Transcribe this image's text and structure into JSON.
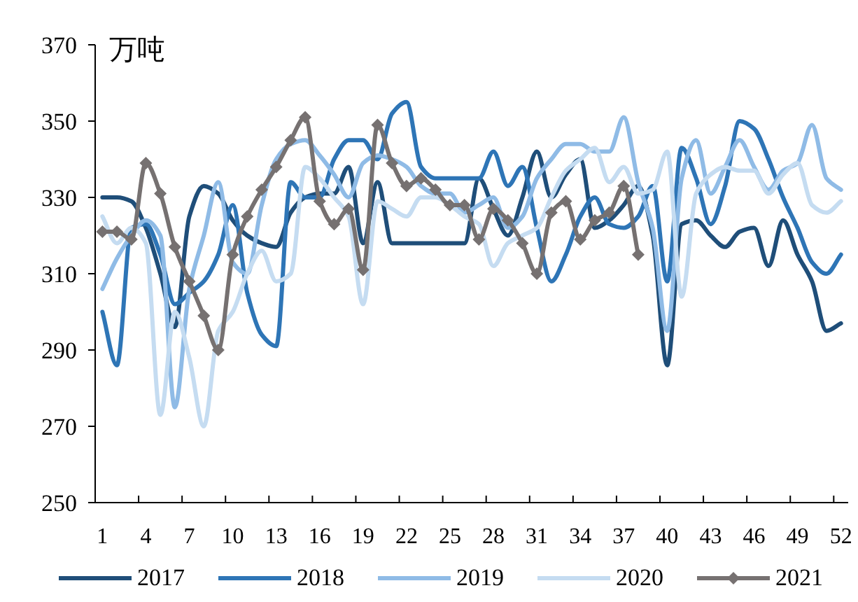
{
  "chart_data": {
    "type": "line",
    "ylabel": "万吨",
    "categories": [
      "1",
      null,
      null,
      "4",
      null,
      null,
      "7",
      null,
      null,
      "10",
      null,
      null,
      "13",
      null,
      null,
      "16",
      null,
      null,
      "19",
      null,
      null,
      "22",
      null,
      null,
      "25",
      null,
      null,
      "28",
      null,
      null,
      "31",
      null,
      null,
      "34",
      null,
      null,
      "37",
      null,
      null,
      "40",
      null,
      null,
      "43",
      null,
      null,
      "46",
      null,
      null,
      "49",
      null,
      null,
      "52"
    ],
    "ylim": [
      250,
      370
    ],
    "yticks": [
      250,
      270,
      290,
      310,
      330,
      350,
      370
    ],
    "legend": "bottom",
    "series": [
      {
        "name": "2017",
        "color": "#1f4e79",
        "marker": "none",
        "values": [
          330,
          330,
          329,
          322,
          310,
          296,
          325,
          333,
          331,
          324,
          320,
          318,
          317,
          326,
          330,
          331,
          331,
          338,
          318,
          334,
          318,
          318,
          318,
          318,
          318,
          318,
          335,
          327,
          320,
          330,
          342,
          330,
          336,
          340,
          322,
          324,
          328,
          333,
          320,
          286,
          323,
          324,
          320,
          317,
          321,
          322,
          312,
          324,
          315,
          308,
          295,
          297
        ]
      },
      {
        "name": "2018",
        "color": "#2e75b6",
        "marker": "none",
        "values": [
          300,
          286,
          322,
          323,
          315,
          302,
          305,
          308,
          315,
          328,
          305,
          294,
          291,
          334,
          330,
          330,
          340,
          345,
          345,
          340,
          352,
          355,
          338,
          335,
          335,
          335,
          335,
          342,
          333,
          338,
          322,
          308,
          315,
          325,
          330,
          323,
          322,
          325,
          333,
          308,
          343,
          335,
          323,
          333,
          350,
          348,
          340,
          330,
          322,
          313,
          310,
          315
        ]
      },
      {
        "name": "2019",
        "color": "#8fbbe6",
        "marker": "none",
        "values": [
          306,
          314,
          320,
          324,
          320,
          275,
          306,
          320,
          334,
          313,
          310,
          328,
          340,
          344,
          345,
          341,
          336,
          330,
          339,
          341,
          340,
          338,
          333,
          331,
          331,
          326,
          328,
          330,
          322,
          325,
          335,
          340,
          344,
          344,
          342,
          342,
          351,
          334,
          322,
          295,
          335,
          345,
          331,
          338,
          345,
          338,
          332,
          337,
          339,
          349,
          335,
          332
        ]
      },
      {
        "name": "2020",
        "color": "#c5dcf1",
        "marker": "none",
        "values": [
          325,
          318,
          322,
          318,
          273,
          300,
          288,
          270,
          295,
          300,
          310,
          316,
          308,
          310,
          338,
          335,
          330,
          325,
          302,
          329,
          327,
          325,
          330,
          330,
          328,
          325,
          323,
          312,
          318,
          320,
          322,
          330,
          337,
          340,
          343,
          334,
          338,
          331,
          332,
          342,
          304,
          331,
          336,
          338,
          337,
          337,
          331,
          336,
          339,
          328,
          326,
          329
        ]
      },
      {
        "name": "2021",
        "color": "#767171",
        "marker": "diamond",
        "values": [
          321,
          321,
          319,
          339,
          331,
          317,
          308,
          299,
          290,
          315,
          325,
          332,
          338,
          345,
          351,
          329,
          323,
          327,
          311,
          349,
          339,
          333,
          335,
          332,
          328,
          328,
          319,
          327,
          324,
          318,
          310,
          326,
          329,
          319,
          324,
          326,
          333,
          315,
          null,
          null,
          null,
          null,
          null,
          null,
          null,
          null,
          null,
          null,
          null,
          null,
          null,
          null
        ]
      }
    ]
  }
}
